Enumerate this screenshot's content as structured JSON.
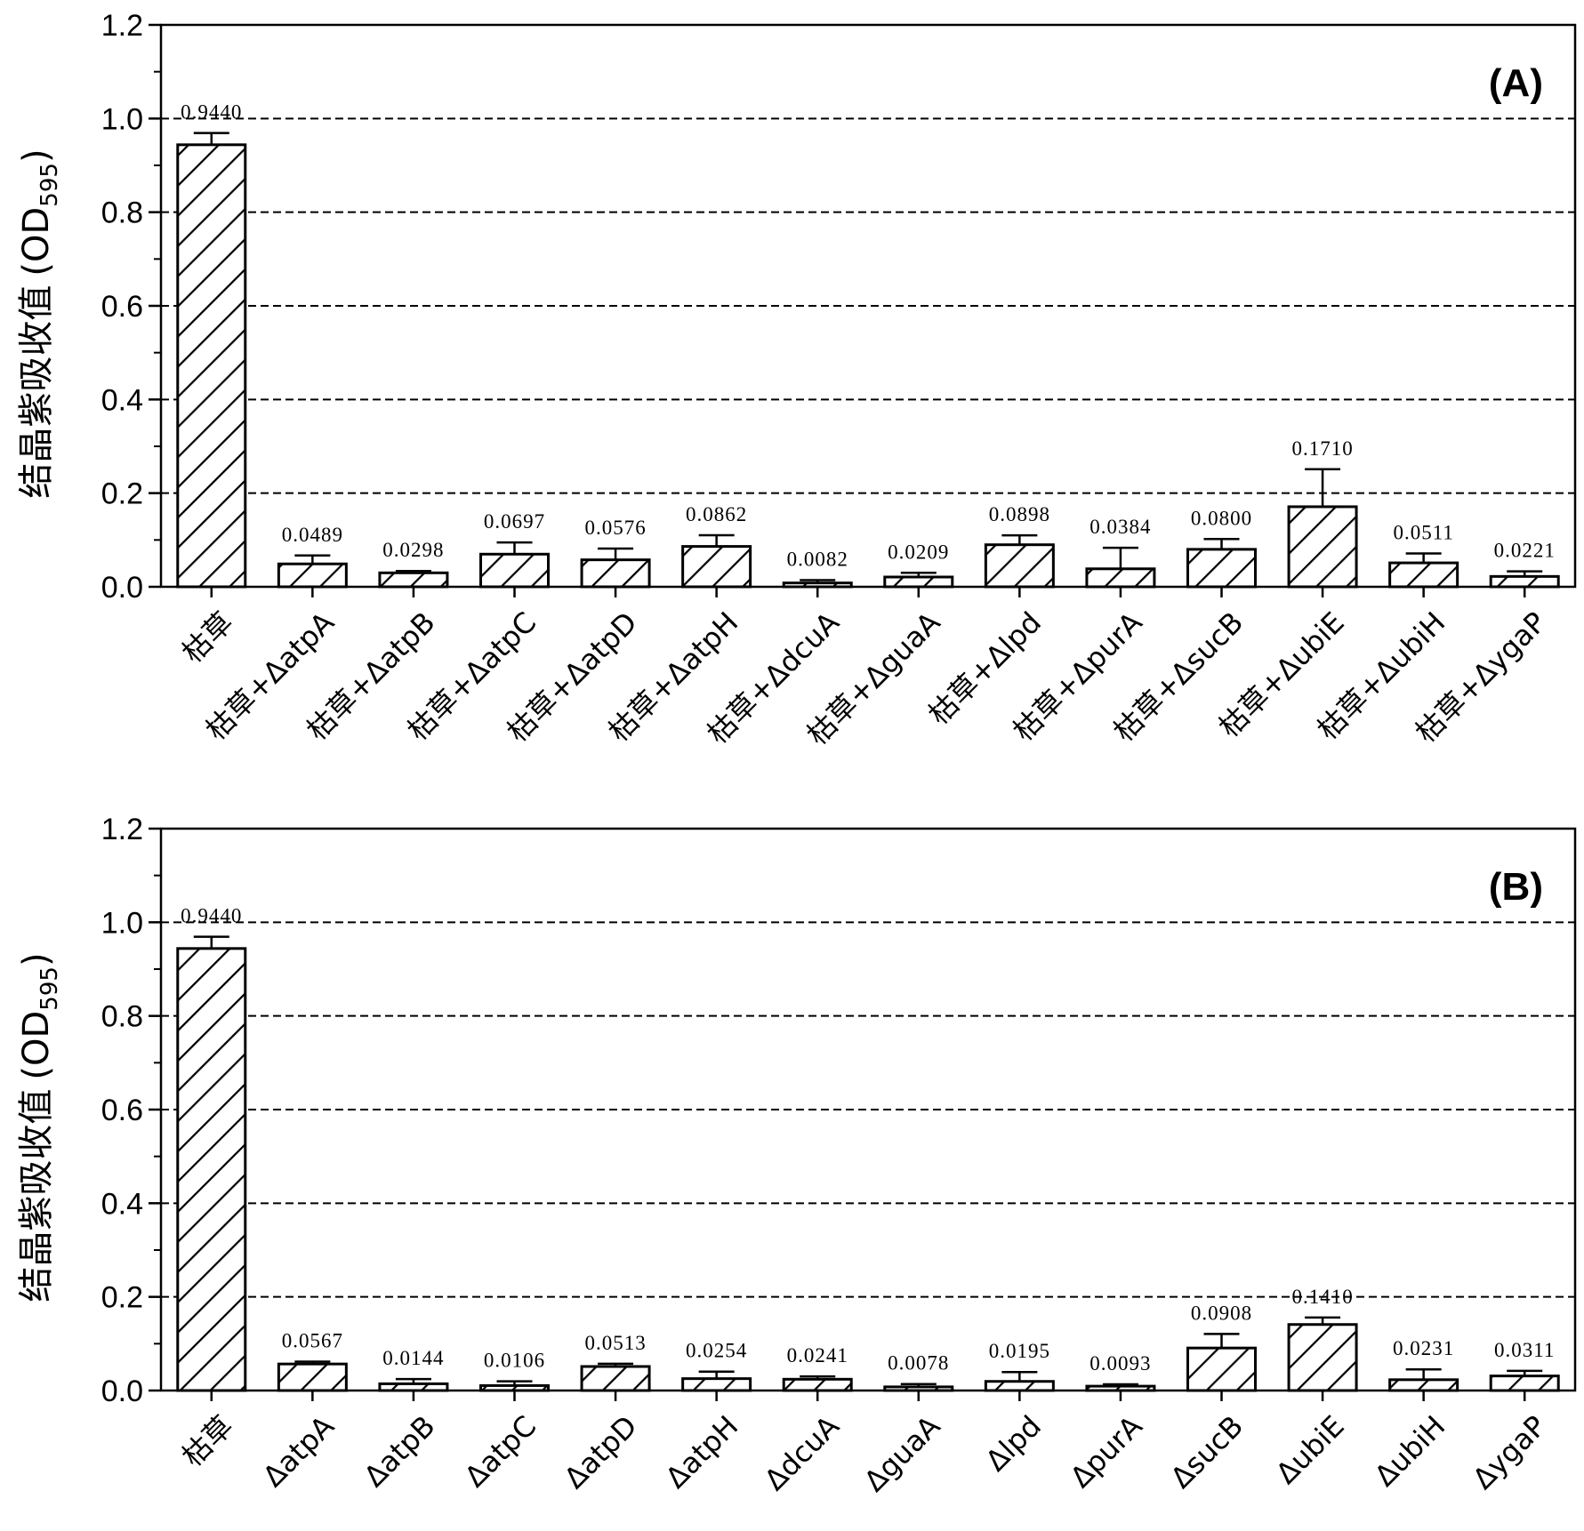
{
  "chart_data": [
    {
      "type": "bar",
      "panel_label": "(A)",
      "ylabel": "结晶紫吸收值",
      "ylabel_unit": "(OD",
      "ylabel_subscript": "595",
      "ylabel_close": ")",
      "ylim": [
        0,
        1.2
      ],
      "yticks": [
        "0.0",
        "0.2",
        "0.4",
        "0.6",
        "0.8",
        "1.0",
        "1.2"
      ],
      "grid": "horizontal dashed at 0.2 intervals",
      "categories": [
        "枯草",
        "枯草+ΔatpA",
        "枯草+ΔatpB",
        "枯草+ΔatpC",
        "枯草+ΔatpD",
        "枯草+ΔatpH",
        "枯草+ΔdcuA",
        "枯草+ΔguaA",
        "枯草+Δlpd",
        "枯草+ΔpurA",
        "枯草+ΔsucB",
        "枯草+ΔubiE",
        "枯草+ΔubiH",
        "枯草+ΔygaP"
      ],
      "values": [
        0.944,
        0.0489,
        0.0298,
        0.0697,
        0.0576,
        0.0862,
        0.0082,
        0.0209,
        0.0898,
        0.0384,
        0.08,
        0.171,
        0.0511,
        0.0221
      ],
      "value_labels": [
        "0.9440",
        "0.0489",
        "0.0298",
        "0.0697",
        "0.0576",
        "0.0862",
        "0.0082",
        "0.0209",
        "0.0898",
        "0.0384",
        "0.0800",
        "0.1710",
        "0.0511",
        "0.0221"
      ],
      "errors": [
        0.025,
        0.018,
        0.004,
        0.025,
        0.024,
        0.024,
        0.006,
        0.009,
        0.02,
        0.045,
        0.022,
        0.08,
        0.02,
        0.011
      ]
    },
    {
      "type": "bar",
      "panel_label": "(B)",
      "ylabel": "结晶紫吸收值",
      "ylabel_unit": "(OD",
      "ylabel_subscript": "595",
      "ylabel_close": ")",
      "ylim": [
        0,
        1.2
      ],
      "yticks": [
        "0.0",
        "0.2",
        "0.4",
        "0.6",
        "0.8",
        "1.0",
        "1.2"
      ],
      "grid": "horizontal dashed at 0.2 intervals",
      "categories": [
        "枯草",
        "ΔatpA",
        "ΔatpB",
        "ΔatpC",
        "ΔatpD",
        "ΔatpH",
        "ΔdcuA",
        "ΔguaA",
        "Δlpd",
        "ΔpurA",
        "ΔsucB",
        "ΔubiE",
        "ΔubiH",
        "ΔygaP"
      ],
      "values": [
        0.944,
        0.0567,
        0.0144,
        0.0106,
        0.0513,
        0.0254,
        0.0241,
        0.0078,
        0.0195,
        0.0093,
        0.0908,
        0.141,
        0.0231,
        0.0311
      ],
      "value_labels": [
        "0.9440",
        "0.0567",
        "0.0144",
        "0.0106",
        "0.0513",
        "0.0254",
        "0.0241",
        "0.0078",
        "0.0195",
        "0.0093",
        "0.0908",
        "0.1410",
        "0.0231",
        "0.0311"
      ],
      "errors": [
        0.025,
        0.005,
        0.01,
        0.009,
        0.006,
        0.015,
        0.006,
        0.006,
        0.02,
        0.004,
        0.03,
        0.015,
        0.022,
        0.011
      ]
    }
  ]
}
